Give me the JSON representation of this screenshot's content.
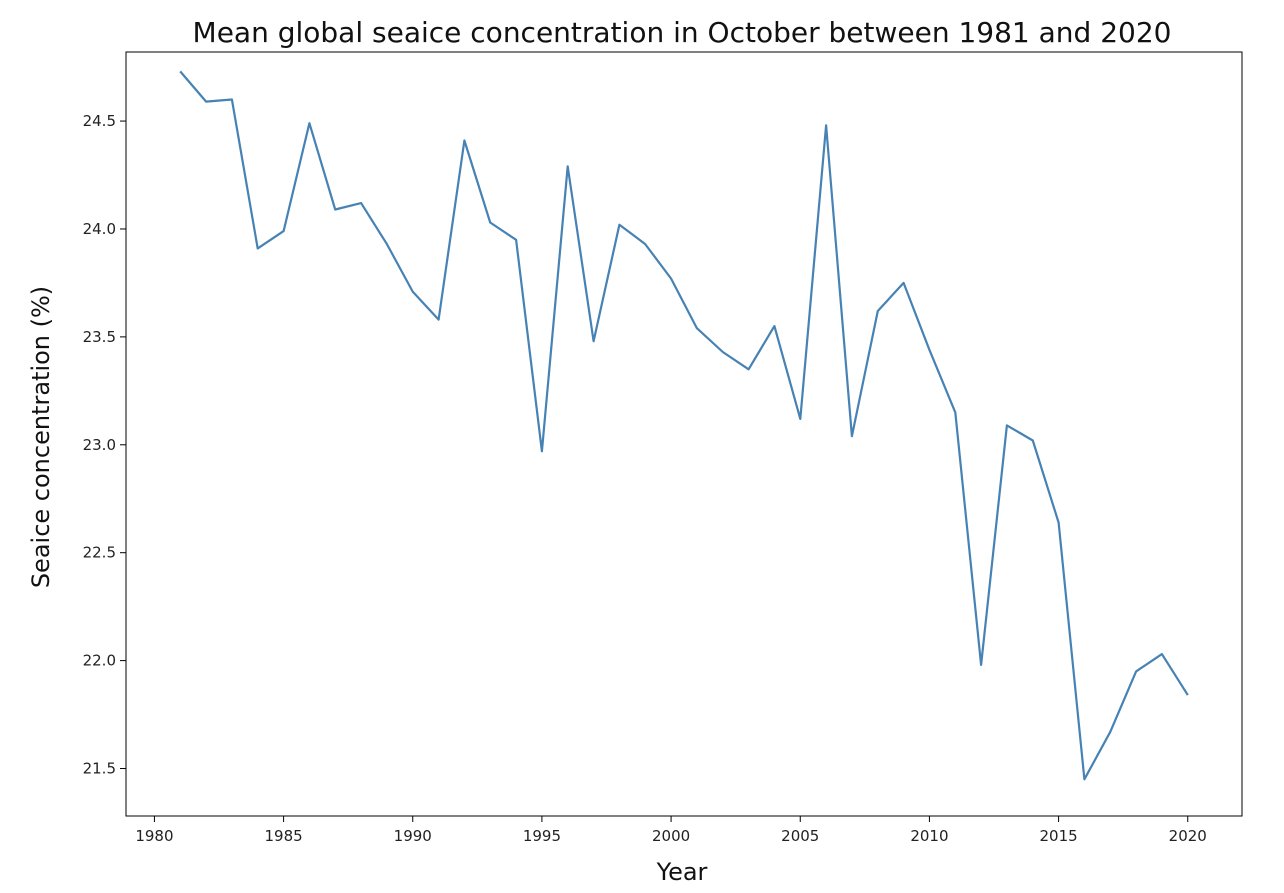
{
  "chart_data": {
    "type": "line",
    "title": "Mean global seaice concentration in October between 1981 and 2020",
    "xlabel": "Year",
    "ylabel": "Seaice concentration (%)",
    "xlim": [
      1978.9,
      2022.1
    ],
    "ylim": [
      21.28,
      24.82
    ],
    "xticks": [
      1980,
      1985,
      1990,
      1995,
      2000,
      2005,
      2010,
      2015,
      2020
    ],
    "xtick_labels": [
      "1980",
      "1985",
      "1990",
      "1995",
      "2000",
      "2005",
      "2010",
      "2015",
      "2020"
    ],
    "yticks": [
      21.5,
      22.0,
      22.5,
      23.0,
      23.5,
      24.0,
      24.5
    ],
    "ytick_labels": [
      "21.5",
      "22.0",
      "22.5",
      "23.0",
      "23.5",
      "24.0",
      "24.5"
    ],
    "grid": false,
    "line_color": "#4682b4",
    "series": [
      {
        "x": [
          1981,
          1982,
          1983,
          1984,
          1985,
          1986,
          1987,
          1988,
          1989,
          1990,
          1991,
          1992,
          1993,
          1994,
          1995,
          1996,
          1997,
          1998,
          1999,
          2000,
          2001,
          2002,
          2003,
          2004,
          2005,
          2006,
          2007,
          2008,
          2009,
          2010,
          2011,
          2012,
          2013,
          2014,
          2015,
          2016,
          2017,
          2018,
          2019,
          2020
        ],
        "values": [
          24.73,
          24.59,
          24.6,
          23.91,
          23.99,
          24.49,
          24.09,
          24.12,
          23.93,
          23.71,
          23.58,
          24.41,
          24.03,
          23.95,
          22.97,
          24.29,
          23.48,
          24.02,
          23.93,
          23.77,
          23.54,
          23.43,
          23.35,
          23.55,
          23.12,
          24.48,
          23.04,
          23.62,
          23.75,
          23.44,
          23.15,
          21.98,
          23.09,
          23.02,
          22.64,
          21.45,
          21.67,
          21.95,
          22.03,
          21.84
        ]
      }
    ]
  }
}
